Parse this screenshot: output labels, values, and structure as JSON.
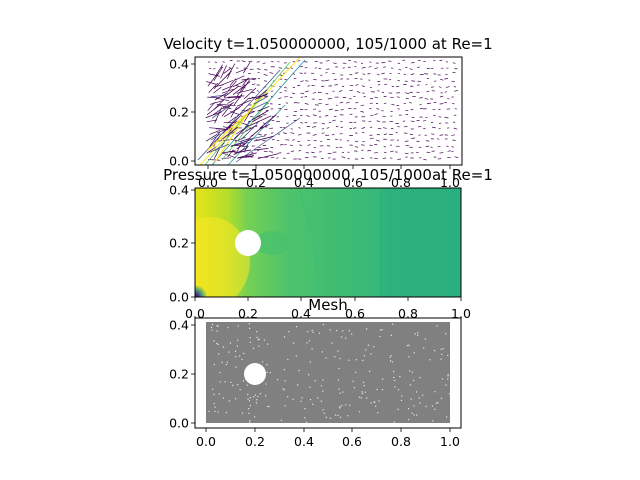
{
  "chart_data": [
    {
      "type": "scatter",
      "subtype": "quiver",
      "title": "Velocity t=1.050000000, 105/1000 at Re=1",
      "xlim": [
        -0.04,
        1.04
      ],
      "ylim": [
        -0.01,
        0.42
      ],
      "xticks": [
        "0.0",
        "0.2",
        "0.4",
        "0.6",
        "0.8",
        "1.0"
      ],
      "yticks": [
        "0.0",
        "0.2",
        "0.4"
      ],
      "colormap": "viridis",
      "colors": [
        "#440154",
        "#3b528b",
        "#21918c",
        "#5ec962",
        "#fde725"
      ]
    },
    {
      "type": "heatmap",
      "subtype": "filled-contour",
      "title": "Pressure t=1.050000000, 105/1000at Re=1",
      "xlim": [
        0.0,
        1.0
      ],
      "ylim": [
        0.0,
        0.41
      ],
      "xticks": [
        "0.0",
        "0.2",
        "0.4",
        "0.6",
        "0.8",
        "1.0"
      ],
      "yticks": [
        "0.0",
        "0.2",
        "0.4"
      ],
      "obstacle": {
        "cx": 0.2,
        "cy": 0.2,
        "r": 0.05
      },
      "colormap": "viridis",
      "colors": [
        "#440154",
        "#3b528b",
        "#21918c",
        "#5ec962",
        "#fde725"
      ]
    },
    {
      "type": "scatter",
      "subtype": "mesh",
      "title": "Mesh",
      "xlim": [
        -0.05,
        1.05
      ],
      "ylim": [
        -0.02,
        0.43
      ],
      "xticks": [
        "0.0",
        "0.2",
        "0.4",
        "0.6",
        "0.8",
        "1.0"
      ],
      "yticks": [
        "0.0",
        "0.2",
        "0.4"
      ],
      "obstacle": {
        "cx": 0.2,
        "cy": 0.2,
        "r": 0.05
      },
      "mesh_color": "#808080"
    }
  ]
}
